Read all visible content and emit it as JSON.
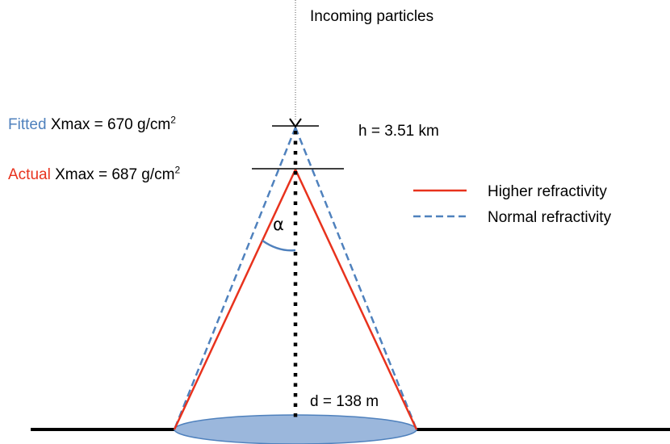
{
  "labels": {
    "incoming": "Incoming particles",
    "height": "h = 3.51 km",
    "distance": "d = 138 m",
    "angle": "α",
    "fitted_prefix": "Fitted",
    "fitted_value": "Xmax = 670 g/cm",
    "actual_prefix": "Actual",
    "actual_value": "Xmax = 687 g/cm",
    "unit_superscript": "2"
  },
  "legend": {
    "items": [
      {
        "label": "Higher refractivity",
        "style": "solid",
        "color": "#e8321d"
      },
      {
        "label": "Normal refractivity",
        "style": "dashed",
        "color": "#4f81bd"
      }
    ]
  },
  "colors": {
    "fitted": "#4f81bd",
    "actual": "#e8321d",
    "ground_fill": "#9bb7dc",
    "ground_stroke": "#4f81bd",
    "axis": "#000000"
  }
}
